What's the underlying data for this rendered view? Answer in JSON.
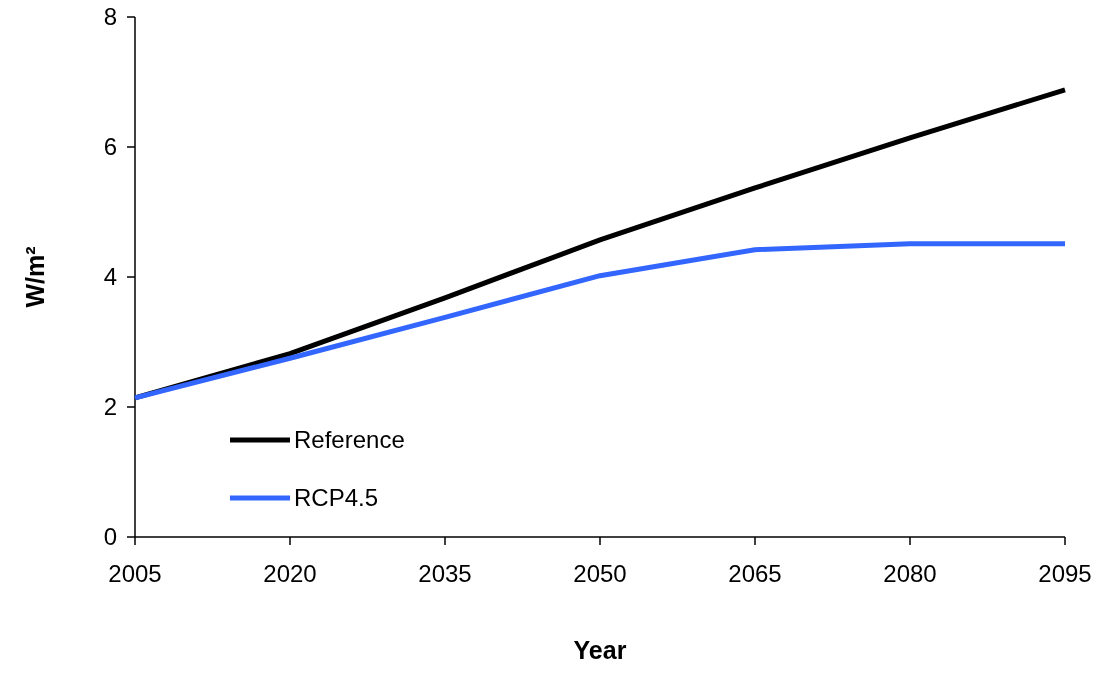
{
  "chart_data": {
    "type": "line",
    "xlabel": "Year",
    "ylabel": "W/m²",
    "x": [
      2005,
      2020,
      2035,
      2050,
      2065,
      2080,
      2095
    ],
    "xlim": [
      2005,
      2095
    ],
    "xticks": [
      2005,
      2020,
      2035,
      2050,
      2065,
      2080,
      2095
    ],
    "ylim": [
      0,
      8
    ],
    "yticks": [
      0,
      2,
      4,
      6,
      8
    ],
    "series": [
      {
        "name": "Reference",
        "color": "#000000",
        "values": [
          2.14,
          2.82,
          3.68,
          4.57,
          5.37,
          6.14,
          6.88
        ]
      },
      {
        "name": "RCP4.5",
        "color": "#3366ff",
        "values": [
          2.14,
          2.75,
          3.38,
          4.02,
          4.42,
          4.51,
          4.51
        ]
      }
    ],
    "legend": "bottom left",
    "grid": false,
    "marker": "none",
    "line_style": "solid"
  }
}
